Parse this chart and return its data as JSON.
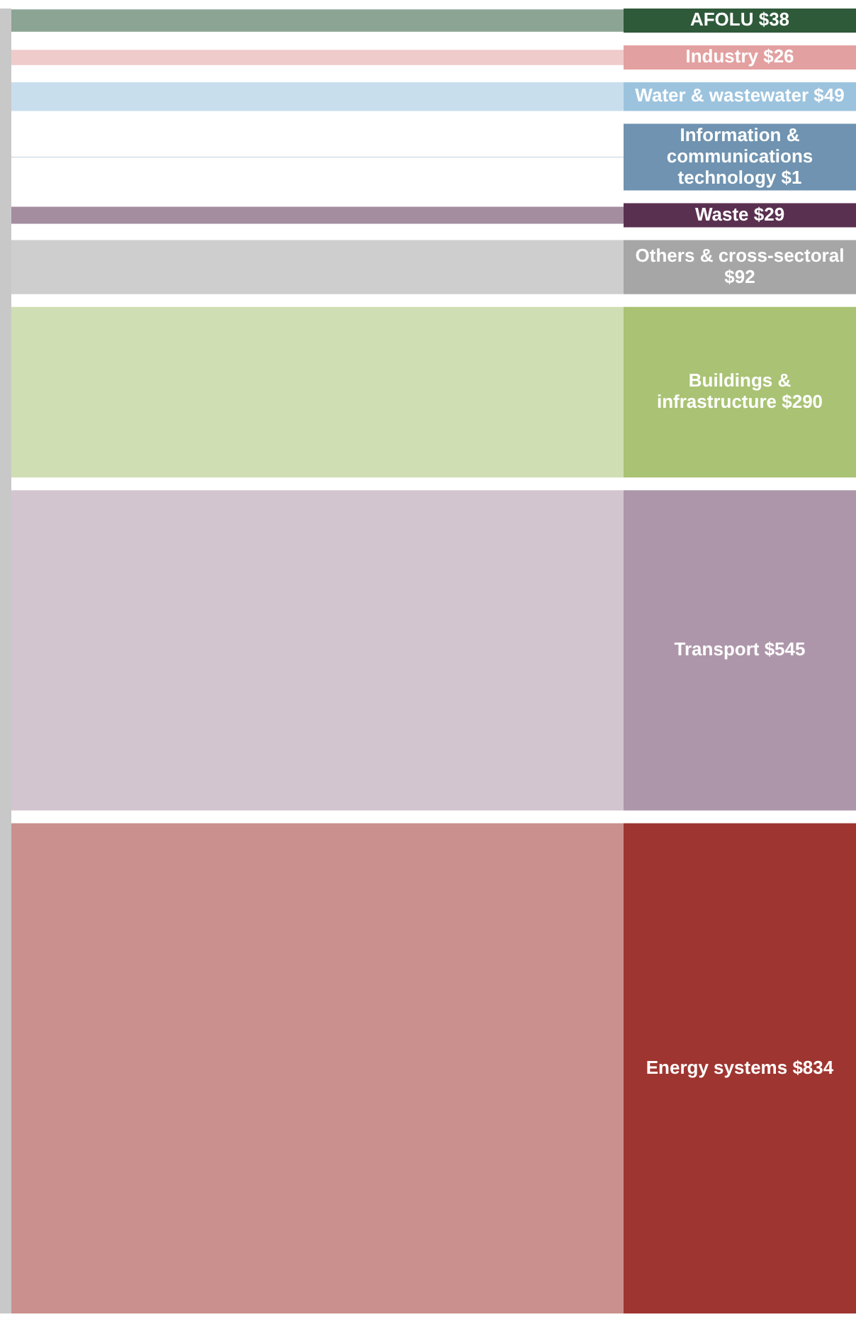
{
  "chart_data": {
    "type": "other",
    "categories": [
      "AFOLU",
      "Industry",
      "Water & wastewater",
      "Information & communications technology",
      "Waste",
      "Others & cross-sectoral",
      "Buildings & infrastructure",
      "Transport",
      "Energy systems"
    ],
    "values": [
      38,
      26,
      49,
      1,
      29,
      92,
      290,
      545,
      834
    ],
    "value_labels": [
      "$38",
      "$26",
      "$49",
      "$1",
      "$29",
      "$92",
      "$290",
      "$545",
      "$834"
    ],
    "colors": [
      "#2e5a3a",
      "#e3a0a0",
      "#9cc3de",
      "#6f93b0",
      "#5a3050",
      "#a6a6a6",
      "#a9c274",
      "#ae96aa",
      "#9e3530"
    ]
  }
}
